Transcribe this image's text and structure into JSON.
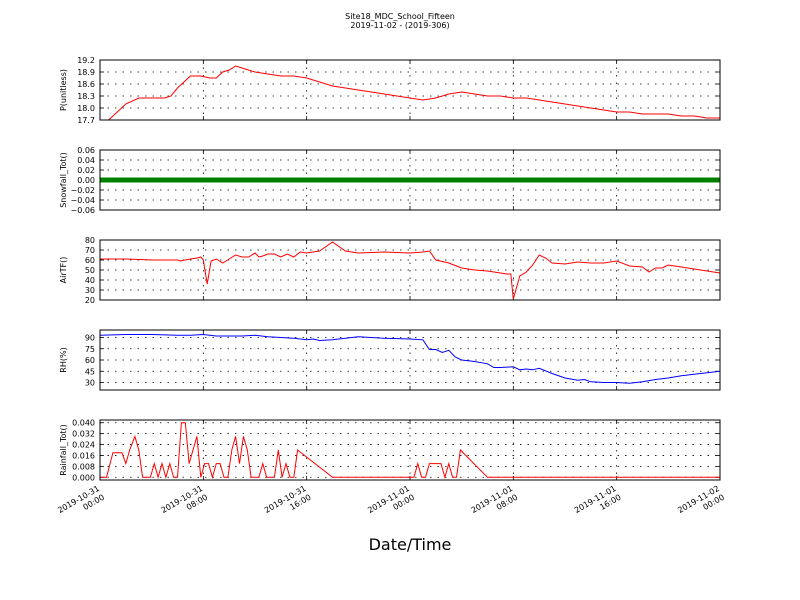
{
  "chart_data": {
    "type": "line",
    "title": "Site18_MDC_School_Fifteen",
    "subtitle": "2019-11-02 - (2019-306)",
    "xlabel": "Date/Time",
    "x_ticks": [
      "2019-10-31\n00:00",
      "2019-10-31\n08:00",
      "2019-10-31\n16:00",
      "2019-11-01\n00:00",
      "2019-11-01\n08:00",
      "2019-11-01\n16:00",
      "2019-11-02\n00:00"
    ],
    "x_tick_hours": [
      0,
      8,
      16,
      24,
      32,
      40,
      48
    ],
    "xlim_hours": [
      0,
      48
    ],
    "grid": true,
    "panels": [
      {
        "ylabel": "P(unitless)",
        "color": "#ff0000",
        "ylim": [
          17.7,
          19.2
        ],
        "yticks": [
          "17.7",
          "18.0",
          "18.3",
          "18.6",
          "18.9",
          "19.2"
        ],
        "ytick_values": [
          17.7,
          18.0,
          18.3,
          18.6,
          18.9,
          19.2
        ],
        "series": [
          {
            "x": [
              0,
              0.5,
              1,
              1.5,
              2,
              3,
              4,
              5,
              5.5,
              6,
              7,
              7.8,
              8.5,
              9,
              9.5,
              10,
              10.5,
              11,
              11.5,
              12,
              13,
              14,
              15,
              16,
              17,
              18,
              19,
              20,
              21,
              22,
              23,
              24,
              25,
              26,
              27,
              28,
              29,
              30,
              31,
              32,
              33,
              34,
              35,
              36,
              37,
              38,
              39,
              40,
              41,
              42,
              43,
              44,
              45,
              46,
              47,
              48
            ],
            "y": [
              17.65,
              17.65,
              17.8,
              17.95,
              18.1,
              18.25,
              18.25,
              18.25,
              18.3,
              18.5,
              18.8,
              18.8,
              18.75,
              18.75,
              18.9,
              18.95,
              19.05,
              19.0,
              18.95,
              18.9,
              18.85,
              18.8,
              18.8,
              18.75,
              18.65,
              18.55,
              18.5,
              18.45,
              18.4,
              18.35,
              18.3,
              18.25,
              18.2,
              18.25,
              18.35,
              18.4,
              18.35,
              18.3,
              18.3,
              18.25,
              18.25,
              18.2,
              18.15,
              18.1,
              18.05,
              18.0,
              17.95,
              17.9,
              17.9,
              17.85,
              17.85,
              17.85,
              17.8,
              17.8,
              17.75,
              17.75
            ]
          }
        ]
      },
      {
        "ylabel": "Snowfall_Tot()",
        "color": "#008000",
        "ylim": [
          -0.06,
          0.06
        ],
        "yticks": [
          "−0.06",
          "−0.04",
          "−0.02",
          "0.00",
          "0.02",
          "0.04",
          "0.06"
        ],
        "ytick_values": [
          -0.06,
          -0.04,
          -0.02,
          0.0,
          0.02,
          0.04,
          0.06
        ],
        "markers": true,
        "series": [
          {
            "x": [
              0,
              2,
              4,
              6,
              8,
              10,
              12,
              14,
              16,
              18,
              20,
              22,
              24,
              26,
              28,
              30,
              32,
              34,
              36,
              38,
              40,
              42,
              44,
              46,
              48
            ],
            "y": [
              0,
              0,
              0,
              0,
              0,
              0,
              0,
              0,
              0,
              0,
              0,
              0,
              0,
              0,
              0,
              0,
              0,
              0,
              0,
              0,
              0,
              0,
              0,
              0,
              0
            ]
          }
        ]
      },
      {
        "ylabel": "AirTF()",
        "color": "#ff0000",
        "ylim": [
          20,
          80
        ],
        "yticks": [
          "20",
          "30",
          "40",
          "50",
          "60",
          "70",
          "80"
        ],
        "ytick_values": [
          20,
          30,
          40,
          50,
          60,
          70,
          80
        ],
        "series": [
          {
            "x": [
              0,
              2,
              4,
              6,
              6.2,
              7,
              7.5,
              7.8,
              8.0,
              8.3,
              8.6,
              9,
              9.5,
              10,
              10.5,
              11,
              11.5,
              12,
              12.3,
              12.6,
              13,
              13.5,
              14,
              14.5,
              15,
              15.5,
              16,
              16.5,
              17,
              18,
              19,
              20,
              22,
              24,
              25,
              25.5,
              26,
              27,
              28,
              29,
              30,
              31,
              31.5,
              31.8,
              32,
              32.5,
              33,
              33.5,
              34,
              34.5,
              35,
              36,
              37,
              38,
              39,
              40,
              41,
              42,
              42.5,
              43,
              43.5,
              44,
              45,
              46,
              47,
              48
            ],
            "y": [
              61,
              61,
              60,
              60,
              59,
              61,
              62,
              63,
              60,
              36,
              59,
              61,
              57,
              61,
              65,
              63,
              63,
              67,
              63,
              64,
              66,
              66,
              63,
              66,
              63,
              68,
              67,
              68,
              69,
              78,
              69,
              67,
              68,
              67,
              68,
              69,
              60,
              57,
              52,
              50,
              49,
              47,
              46,
              46,
              21,
              44,
              48,
              55,
              65,
              62,
              57,
              56,
              58,
              57,
              57,
              59,
              54,
              53,
              48,
              52,
              52,
              55,
              53,
              51,
              49,
              47
            ]
          }
        ]
      },
      {
        "ylabel": "RH(%)",
        "color": "#0000ff",
        "ylim": [
          20,
          100
        ],
        "yticks": [
          "30",
          "45",
          "60",
          "75",
          "90"
        ],
        "ytick_values": [
          30,
          45,
          60,
          75,
          90
        ],
        "series": [
          {
            "x": [
              0,
              2,
              4,
              6,
              7,
              8,
              9,
              10,
              11,
              12,
              13,
              14,
              15,
              16,
              16.5,
              17,
              18,
              19,
              20,
              22,
              24,
              25,
              25.5,
              26,
              26.5,
              27,
              27.5,
              28,
              29,
              30,
              30.5,
              31,
              32,
              32.5,
              33,
              33.5,
              34,
              35,
              36,
              37,
              37.5,
              38,
              39,
              40,
              41,
              42,
              43,
              44,
              45,
              46,
              47,
              48
            ],
            "y": [
              93,
              94,
              94,
              93,
              93,
              94,
              92,
              92,
              92,
              93,
              91,
              90,
              89,
              87,
              88,
              86,
              87,
              89,
              91,
              89,
              88,
              87,
              74,
              74,
              70,
              73,
              64,
              60,
              58,
              55,
              50,
              50,
              51,
              47,
              48,
              47,
              49,
              42,
              36,
              33,
              34,
              31,
              30,
              30,
              29,
              31,
              34,
              36,
              39,
              41,
              43,
              45
            ]
          }
        ]
      },
      {
        "ylabel": "Rainfall_Tot()",
        "color": "#ff0000",
        "ylim": [
          -0.002,
          0.042
        ],
        "yticks": [
          "0.000",
          "0.008",
          "0.016",
          "0.024",
          "0.032",
          "0.040"
        ],
        "ytick_values": [
          0.0,
          0.008,
          0.016,
          0.024,
          0.032,
          0.04
        ],
        "series": [
          {
            "x": [
              0,
              0.5,
              1.0,
              1.5,
              1.7,
              2.0,
              2.3,
              2.7,
              3.0,
              3.3,
              3.6,
              3.9,
              4.2,
              4.5,
              4.8,
              5.1,
              5.4,
              5.7,
              6.0,
              6.3,
              6.6,
              6.9,
              7.2,
              7.5,
              7.8,
              8.1,
              8.4,
              8.7,
              9.0,
              9.3,
              9.6,
              9.9,
              10.2,
              10.5,
              10.8,
              11.1,
              11.4,
              11.7,
              12.0,
              12.3,
              12.6,
              12.9,
              13.2,
              13.5,
              13.8,
              14.1,
              14.4,
              14.7,
              15.0,
              15.3,
              18,
              22,
              24,
              24.3,
              24.6,
              24.9,
              25.2,
              25.5,
              25.8,
              26.1,
              26.4,
              26.7,
              27.0,
              27.3,
              27.6,
              27.9,
              30,
              35,
              40,
              48
            ],
            "y": [
              0.0,
              0.0,
              0.018,
              0.018,
              0.018,
              0.01,
              0.02,
              0.03,
              0.02,
              0.0,
              0.0,
              0.0,
              0.01,
              0.0,
              0.01,
              0.0,
              0.01,
              0.0,
              0.0,
              0.04,
              0.04,
              0.01,
              0.02,
              0.03,
              0.0,
              0.01,
              0.01,
              0.0,
              0.01,
              0.01,
              0.0,
              0.0,
              0.02,
              0.03,
              0.01,
              0.03,
              0.02,
              0.0,
              0.0,
              0.0,
              0.01,
              0.0,
              0.0,
              0.0,
              0.02,
              0.0,
              0.01,
              0.0,
              0.0,
              0.02,
              0.0,
              0.0,
              0.0,
              0.0,
              0.01,
              0.0,
              0.0,
              0.01,
              0.01,
              0.01,
              0.01,
              0.0,
              0.01,
              0.0,
              0.0,
              0.02,
              0.0,
              0.0,
              0.0,
              0.0
            ]
          }
        ]
      }
    ]
  }
}
